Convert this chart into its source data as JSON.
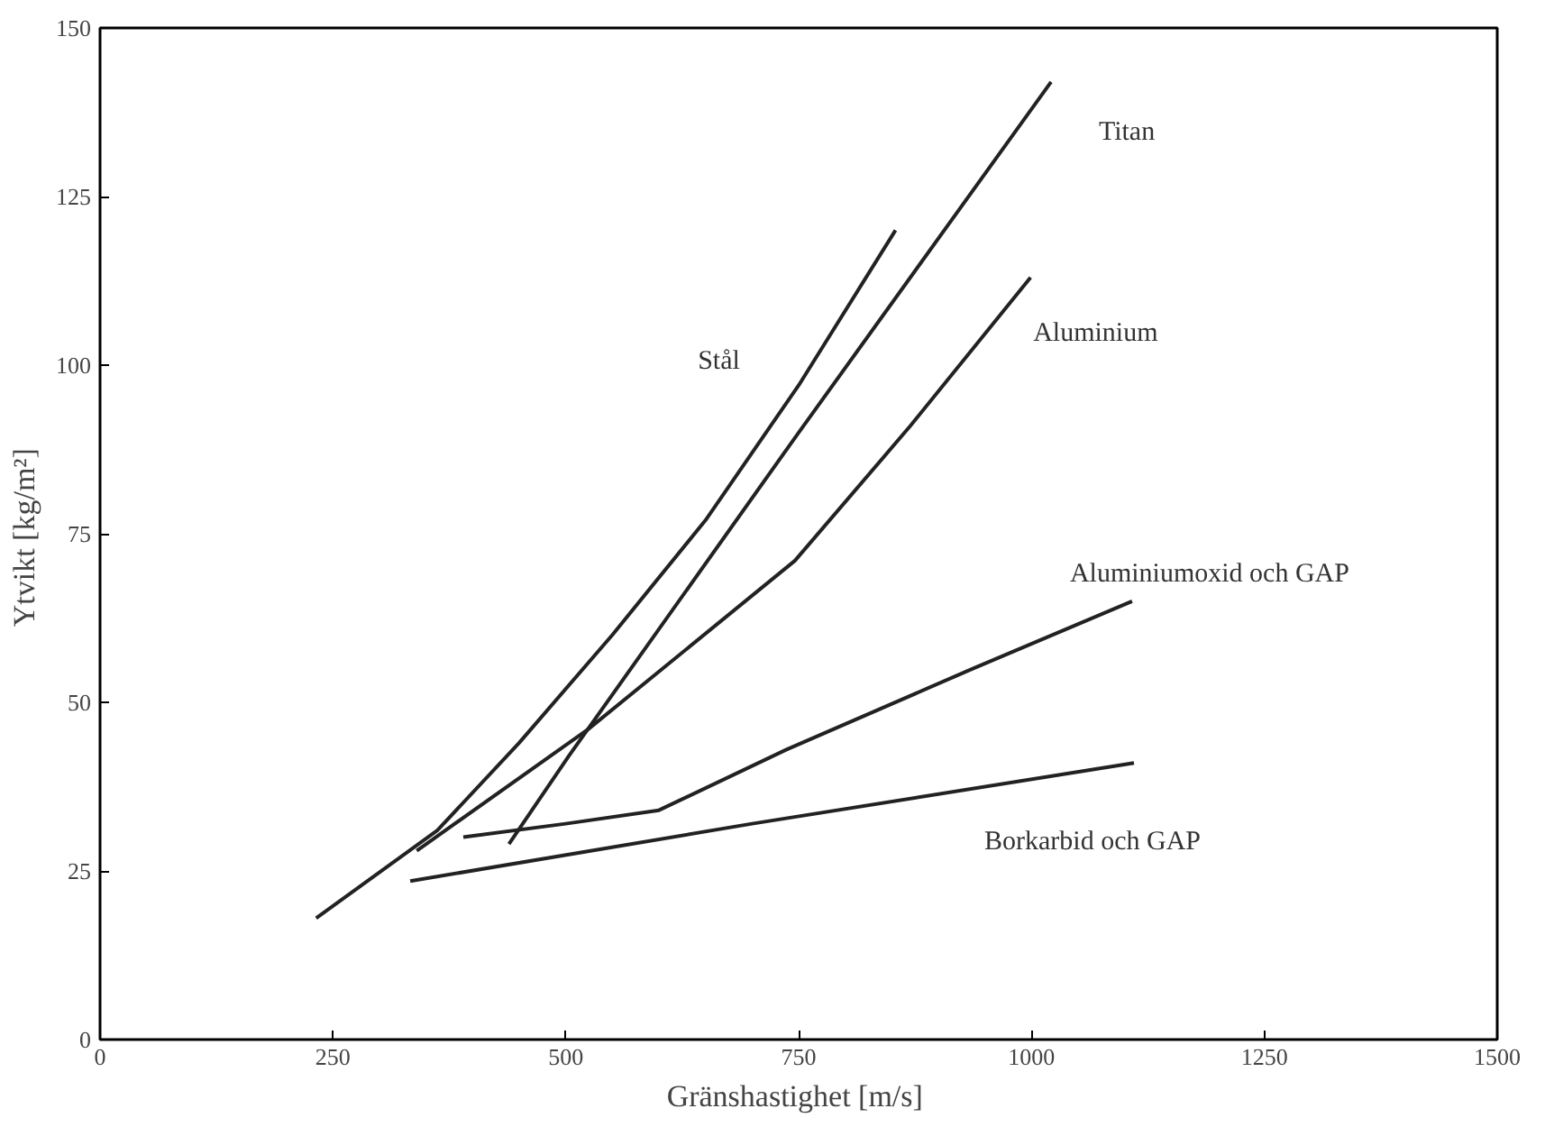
{
  "chart_data": {
    "type": "line",
    "xlabel": "Gränshastighet  [m/s]",
    "ylabel": "Ytvikt  [kg/m²]",
    "xlim": [
      0,
      1500
    ],
    "xticks": [
      0,
      250,
      500,
      750,
      1000,
      1250,
      1500
    ],
    "ylim": [
      0,
      150
    ],
    "yticks": [
      0,
      25,
      50,
      75,
      100,
      125,
      150
    ],
    "grid": false,
    "legend": false,
    "marker": "none",
    "line_style": "solid",
    "series": [
      {
        "name": "Stål",
        "color": "#222222",
        "x": [
          232,
          362,
          450,
          550,
          650,
          750,
          854
        ],
        "values": [
          18,
          31,
          44,
          60,
          77,
          97,
          120
        ]
      },
      {
        "name": "Titan",
        "color": "#222222",
        "x": [
          439,
          503,
          750,
          1021
        ],
        "values": [
          29,
          42,
          90,
          142
        ]
      },
      {
        "name": "Aluminium",
        "color": "#222222",
        "x": [
          340,
          524,
          746,
          870,
          999
        ],
        "values": [
          28,
          46,
          71,
          91,
          113
        ]
      },
      {
        "name": "Aluminiumoxid och GAP",
        "color": "#222222",
        "x": [
          390,
          500,
          600,
          737,
          937,
          1108
        ],
        "values": [
          30,
          32,
          34,
          43,
          55,
          65
        ]
      },
      {
        "name": "Borkarbid och GAP",
        "color": "#222222",
        "x": [
          333,
          700,
          1110
        ],
        "values": [
          23.5,
          32,
          41
        ]
      }
    ]
  }
}
